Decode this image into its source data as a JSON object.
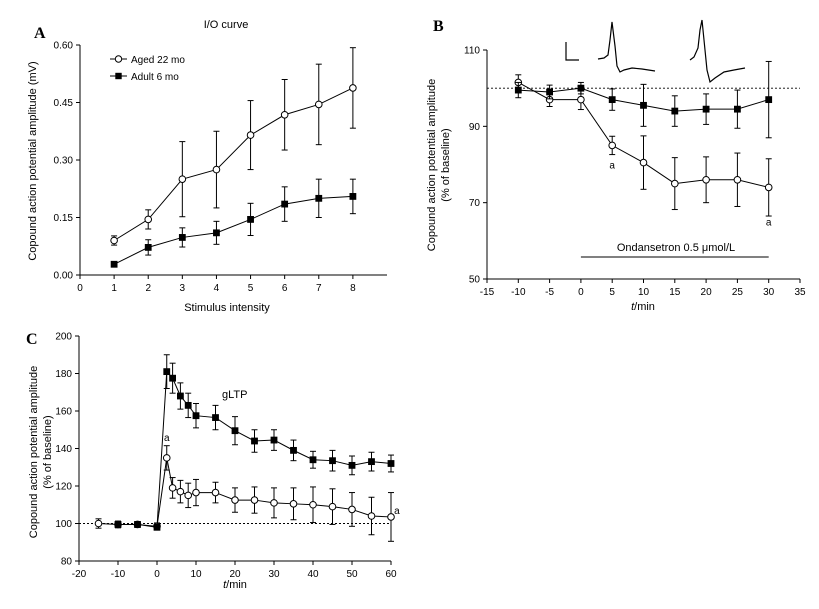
{
  "chart_data": [
    {
      "id": "A",
      "type": "line",
      "panel_label": "A",
      "title": "I/O curve",
      "xlabel": "Stimulus intensity",
      "ylabel": "Copound action potential amplitude (mV)",
      "xlim": [
        0,
        9
      ],
      "ylim": [
        0,
        0.6
      ],
      "xticks": [
        0,
        1,
        2,
        3,
        4,
        5,
        6,
        7,
        8
      ],
      "yticks": [
        0,
        0.15,
        0.3,
        0.45,
        0.6
      ],
      "ytick_labels": [
        "0.00",
        "0.15",
        "0.30",
        "0.45",
        "0.60"
      ],
      "legend_position": "top-left",
      "series": [
        {
          "name": "Aged 22 mo",
          "marker": "open-circle",
          "x": [
            1,
            2,
            3,
            4,
            5,
            6,
            7,
            8
          ],
          "y": [
            0.09,
            0.145,
            0.25,
            0.275,
            0.365,
            0.418,
            0.445,
            0.488
          ],
          "err": [
            0.012,
            0.025,
            0.098,
            0.1,
            0.09,
            0.092,
            0.105,
            0.105
          ]
        },
        {
          "name": "Adult 6 mo",
          "marker": "filled-square",
          "x": [
            1,
            2,
            3,
            4,
            5,
            6,
            7,
            8
          ],
          "y": [
            0.028,
            0.072,
            0.098,
            0.11,
            0.145,
            0.185,
            0.2,
            0.205
          ],
          "err": [
            0.0,
            0.02,
            0.025,
            0.03,
            0.042,
            0.045,
            0.05,
            0.045
          ]
        }
      ]
    },
    {
      "id": "B",
      "type": "line",
      "panel_label": "B",
      "xlabel": "t/min",
      "ylabel": "Copound action potential amplitude (% of baseline)",
      "xlim": [
        -15,
        35
      ],
      "ylim": [
        50,
        110
      ],
      "xticks": [
        -15,
        -10,
        -5,
        0,
        5,
        10,
        15,
        20,
        25,
        30,
        35
      ],
      "yticks": [
        50,
        70,
        90,
        110
      ],
      "baseline": 100,
      "annotation": "Ondansetron 0.5 μmol/L",
      "annotation_span": [
        0,
        30
      ],
      "sig_marks": [
        {
          "text": "a",
          "x": 5,
          "y": 79
        },
        {
          "text": "a",
          "x": 30,
          "y": 64
        }
      ],
      "series": [
        {
          "name": "",
          "marker": "open-circle",
          "x": [
            -10,
            -5,
            0,
            5,
            10,
            15,
            20,
            25,
            30
          ],
          "y": [
            101.5,
            97.0,
            97.0,
            85.0,
            80.5,
            75.0,
            76.0,
            76.0,
            74.0
          ],
          "err": [
            2.0,
            1.8,
            2.6,
            2.4,
            7.0,
            6.8,
            6.0,
            7.0,
            7.5
          ]
        },
        {
          "name": "",
          "marker": "filled-square",
          "x": [
            -10,
            -5,
            0,
            5,
            10,
            15,
            20,
            25,
            30
          ],
          "y": [
            99.5,
            99.0,
            100.0,
            97.0,
            95.5,
            94.0,
            94.5,
            94.5,
            97.0
          ],
          "err": [
            2.0,
            1.8,
            1.5,
            2.8,
            5.5,
            4.0,
            4.0,
            5.0,
            10.0
          ]
        }
      ]
    },
    {
      "id": "C",
      "type": "line",
      "panel_label": "C",
      "xlabel": "t/min",
      "ylabel": "Copound action potential amplitude (% of baseline)",
      "xlim": [
        -20,
        60
      ],
      "ylim": [
        80,
        200
      ],
      "xticks": [
        -20,
        -10,
        0,
        10,
        20,
        30,
        40,
        50,
        60
      ],
      "yticks": [
        80,
        100,
        120,
        140,
        160,
        180,
        200
      ],
      "ytick_labels": [
        "80",
        "100",
        "120",
        "140",
        "160",
        "180",
        "200"
      ],
      "baseline": 100,
      "annotation": "gLTP",
      "sig_marks": [
        {
          "text": "a",
          "x": 2.5,
          "y": 144
        },
        {
          "text": "a",
          "x": 61.5,
          "y": 105
        }
      ],
      "series": [
        {
          "name": "",
          "marker": "open-circle",
          "x": [
            -15,
            -10,
            -5,
            0,
            2.5,
            4,
            6,
            8,
            10,
            15,
            20,
            25,
            30,
            35,
            40,
            45,
            50,
            55,
            60
          ],
          "y": [
            100,
            99.5,
            99.5,
            98.5,
            135,
            119,
            117,
            115,
            116.5,
            116.5,
            112.5,
            112.5,
            111,
            110.5,
            110,
            109,
            107.5,
            104,
            103.5
          ],
          "err": [
            2.5,
            1.8,
            1.5,
            1.8,
            6.5,
            5.5,
            6.0,
            6.5,
            7.0,
            5.5,
            6.5,
            7.0,
            8.0,
            8.5,
            9.5,
            9.5,
            9.0,
            10.0,
            13.0
          ]
        },
        {
          "name": "",
          "marker": "filled-square",
          "x": [
            -10,
            -5,
            0,
            2.5,
            4,
            6,
            8,
            10,
            15,
            20,
            25,
            30,
            35,
            40,
            45,
            50,
            55,
            60
          ],
          "y": [
            99.5,
            99.5,
            98,
            181,
            177.5,
            168,
            163,
            157.5,
            156.5,
            149.5,
            144,
            144.5,
            139,
            134,
            133.5,
            131,
            133,
            132
          ],
          "err": [
            1.5,
            1.5,
            1.5,
            9.0,
            8.0,
            7.0,
            6.5,
            6.5,
            6.5,
            7.5,
            6.0,
            5.5,
            5.5,
            4.5,
            5.5,
            5.0,
            5.0,
            4.5
          ]
        }
      ]
    }
  ]
}
